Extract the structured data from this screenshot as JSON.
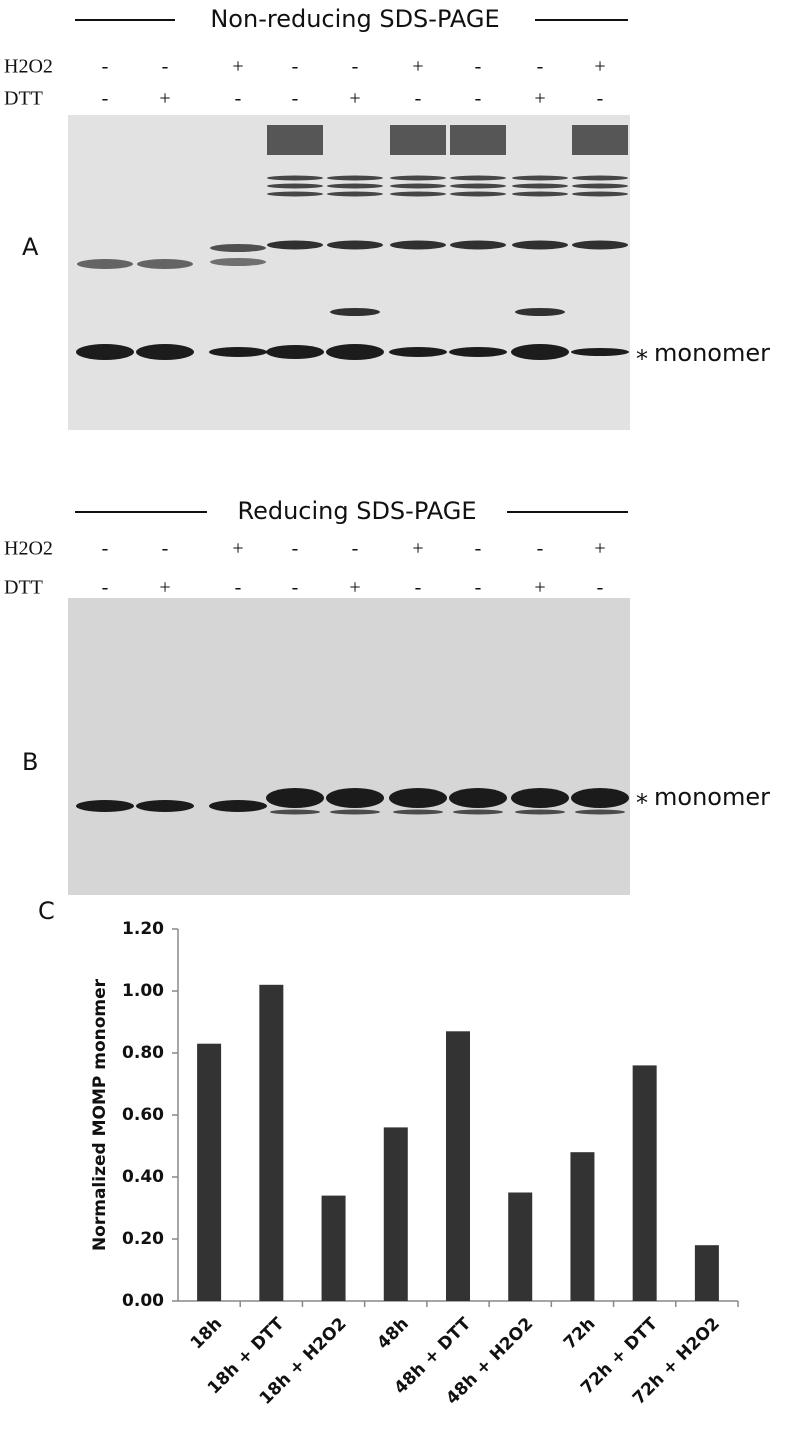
{
  "panel_a": {
    "label": "A",
    "title": "Non-reducing SDS-PAGE",
    "rows": [
      {
        "name": "H2O2",
        "signs": [
          "-",
          "-",
          "+",
          "-",
          "-",
          "+",
          "-",
          "-",
          "+"
        ]
      },
      {
        "name": "DTT",
        "signs": [
          "-",
          "+",
          "-",
          "-",
          "+",
          "-",
          "-",
          "+",
          "-"
        ]
      }
    ],
    "asterisk": "*",
    "band_label": "monomer"
  },
  "panel_b": {
    "label": "B",
    "title": "Reducing SDS-PAGE",
    "rows": [
      {
        "name": "H2O2",
        "signs": [
          "-",
          "-",
          "+",
          "-",
          "-",
          "+",
          "-",
          "-",
          "+"
        ]
      },
      {
        "name": "DTT",
        "signs": [
          "-",
          "+",
          "-",
          "-",
          "+",
          "-",
          "-",
          "+",
          "-"
        ]
      }
    ],
    "asterisk": "*",
    "band_label": "monomer"
  },
  "chart_data": {
    "type": "bar",
    "panel_label": "C",
    "y_label": "Normalized MOMP monomer",
    "categories": [
      "18h",
      "18h + DTT",
      "18h + H2O2",
      "48h",
      "48h + DTT",
      "48h + H2O2",
      "72h",
      "72h + DTT",
      "72h + H2O2"
    ],
    "values": [
      0.83,
      1.02,
      0.34,
      0.56,
      0.87,
      0.35,
      0.48,
      0.76,
      0.18
    ],
    "color": "#333333",
    "ylim": [
      0,
      1.2
    ],
    "yticks": [
      {
        "value": 0,
        "label": "0.00"
      },
      {
        "value": 0.2,
        "label": "0.20"
      },
      {
        "value": 0.4,
        "label": "0.40"
      },
      {
        "value": 0.6,
        "label": "0.60"
      },
      {
        "value": 0.8,
        "label": "0.80"
      },
      {
        "value": 1,
        "label": "1.00"
      },
      {
        "value": 1.2,
        "label": "1.20"
      }
    ],
    "grid": false
  }
}
